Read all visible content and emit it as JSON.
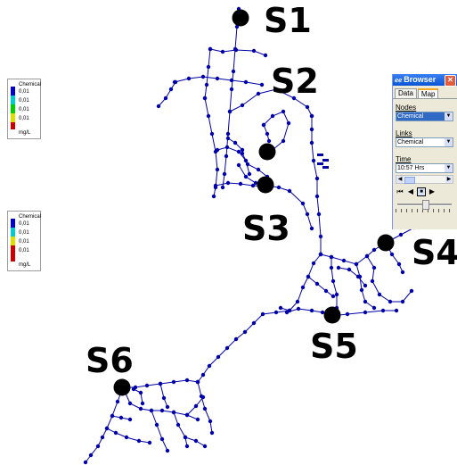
{
  "legends": [
    {
      "title": "Chemical",
      "entries": [
        {
          "value": "0,01",
          "color": "#0000cc"
        },
        {
          "value": "0,01",
          "color": "#00cccc"
        },
        {
          "value": "0,01",
          "color": "#00cc00"
        },
        {
          "value": "0,01",
          "color": "#dddd00"
        },
        {
          "value": "",
          "color": "#cc0000"
        }
      ],
      "unit": "mg/L"
    },
    {
      "title": "Chemical",
      "entries": [
        {
          "value": "0,01",
          "color": "#0000cc"
        },
        {
          "value": "0,01",
          "color": "#00cccc"
        },
        {
          "value": "0,01",
          "color": "#dddd00"
        },
        {
          "value": "0,01",
          "color": "#cc0000"
        },
        {
          "value": "",
          "color": "#cc0000"
        }
      ],
      "unit": "mg/L"
    }
  ],
  "sensors": [
    "S1",
    "S2",
    "S3",
    "S4",
    "S5",
    "S6"
  ],
  "browser": {
    "title": "Browser",
    "tabs": [
      {
        "label": "Data",
        "active": false
      },
      {
        "label": "Map",
        "active": true
      }
    ],
    "nodes_label": "Nodes",
    "nodes_value": "Chemical",
    "links_label": "Links",
    "links_value": "Chemical",
    "time_label": "Time",
    "time_value": "10:57 Hrs"
  },
  "colors": {
    "network": "#0000a8",
    "sensor": "#000000"
  }
}
